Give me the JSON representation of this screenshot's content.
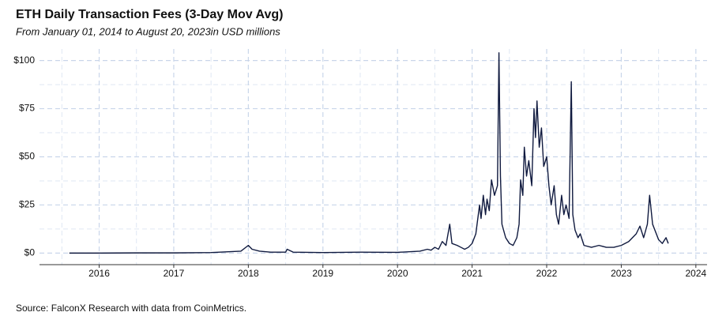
{
  "chart_data": {
    "type": "line",
    "title": "ETH Daily Transaction Fees (3-Day Mov Avg)",
    "subtitle": "From January 01, 2014 to August 20, 2023in USD millions",
    "source": "Source: FalconX Research with data from CoinMetrics.",
    "x": [
      2015.6,
      2016.0,
      2016.5,
      2017.0,
      2017.5,
      2017.9,
      2018.0,
      2018.05,
      2018.15,
      2018.3,
      2018.5,
      2018.52,
      2018.6,
      2019.0,
      2019.5,
      2020.0,
      2020.3,
      2020.4,
      2020.45,
      2020.5,
      2020.55,
      2020.6,
      2020.65,
      2020.7,
      2020.73,
      2020.8,
      2020.85,
      2020.9,
      2020.95,
      2021.0,
      2021.05,
      2021.1,
      2021.12,
      2021.15,
      2021.18,
      2021.2,
      2021.23,
      2021.26,
      2021.3,
      2021.34,
      2021.36,
      2021.38,
      2021.4,
      2021.45,
      2021.5,
      2021.55,
      2021.6,
      2021.63,
      2021.65,
      2021.68,
      2021.7,
      2021.73,
      2021.76,
      2021.8,
      2021.83,
      2021.85,
      2021.87,
      2021.9,
      2021.93,
      2021.96,
      2022.0,
      2022.03,
      2022.06,
      2022.1,
      2022.13,
      2022.16,
      2022.2,
      2022.23,
      2022.26,
      2022.3,
      2022.33,
      2022.35,
      2022.38,
      2022.42,
      2022.45,
      2022.5,
      2022.6,
      2022.7,
      2022.8,
      2022.9,
      2023.0,
      2023.1,
      2023.2,
      2023.25,
      2023.3,
      2023.35,
      2023.38,
      2023.42,
      2023.45,
      2023.5,
      2023.55,
      2023.6,
      2023.63
    ],
    "series": [
      {
        "color": "#101a3f",
        "values": [
          0,
          0,
          0.1,
          0.1,
          0.3,
          1,
          4,
          2,
          1,
          0.5,
          0.5,
          2,
          0.5,
          0.3,
          0.5,
          0.4,
          1,
          2,
          1.5,
          3,
          2,
          6,
          4,
          15,
          5,
          4,
          3,
          2,
          3,
          5,
          10,
          25,
          18,
          30,
          20,
          28,
          22,
          38,
          30,
          35,
          104,
          40,
          15,
          8,
          5,
          4,
          8,
          15,
          38,
          30,
          55,
          40,
          48,
          35,
          75,
          60,
          79,
          55,
          65,
          45,
          50,
          35,
          25,
          35,
          20,
          15,
          30,
          20,
          25,
          18,
          89,
          20,
          12,
          8,
          10,
          4,
          3,
          4,
          3,
          3,
          4,
          6,
          10,
          14,
          8,
          15,
          30,
          15,
          12,
          7,
          5,
          8,
          5
        ]
      }
    ],
    "xlim": [
      2015.2,
      2024.15
    ],
    "xticks": [
      2016,
      2017,
      2018,
      2019,
      2020,
      2021,
      2022,
      2023,
      2024
    ],
    "ylim": [
      -6,
      106
    ],
    "yticks": [
      {
        "value": 0,
        "label": "$0"
      },
      {
        "value": 25,
        "label": "$25"
      },
      {
        "value": 50,
        "label": "$50"
      },
      {
        "value": 75,
        "label": "$75"
      },
      {
        "value": 100,
        "label": "$100"
      }
    ],
    "grid": true
  }
}
